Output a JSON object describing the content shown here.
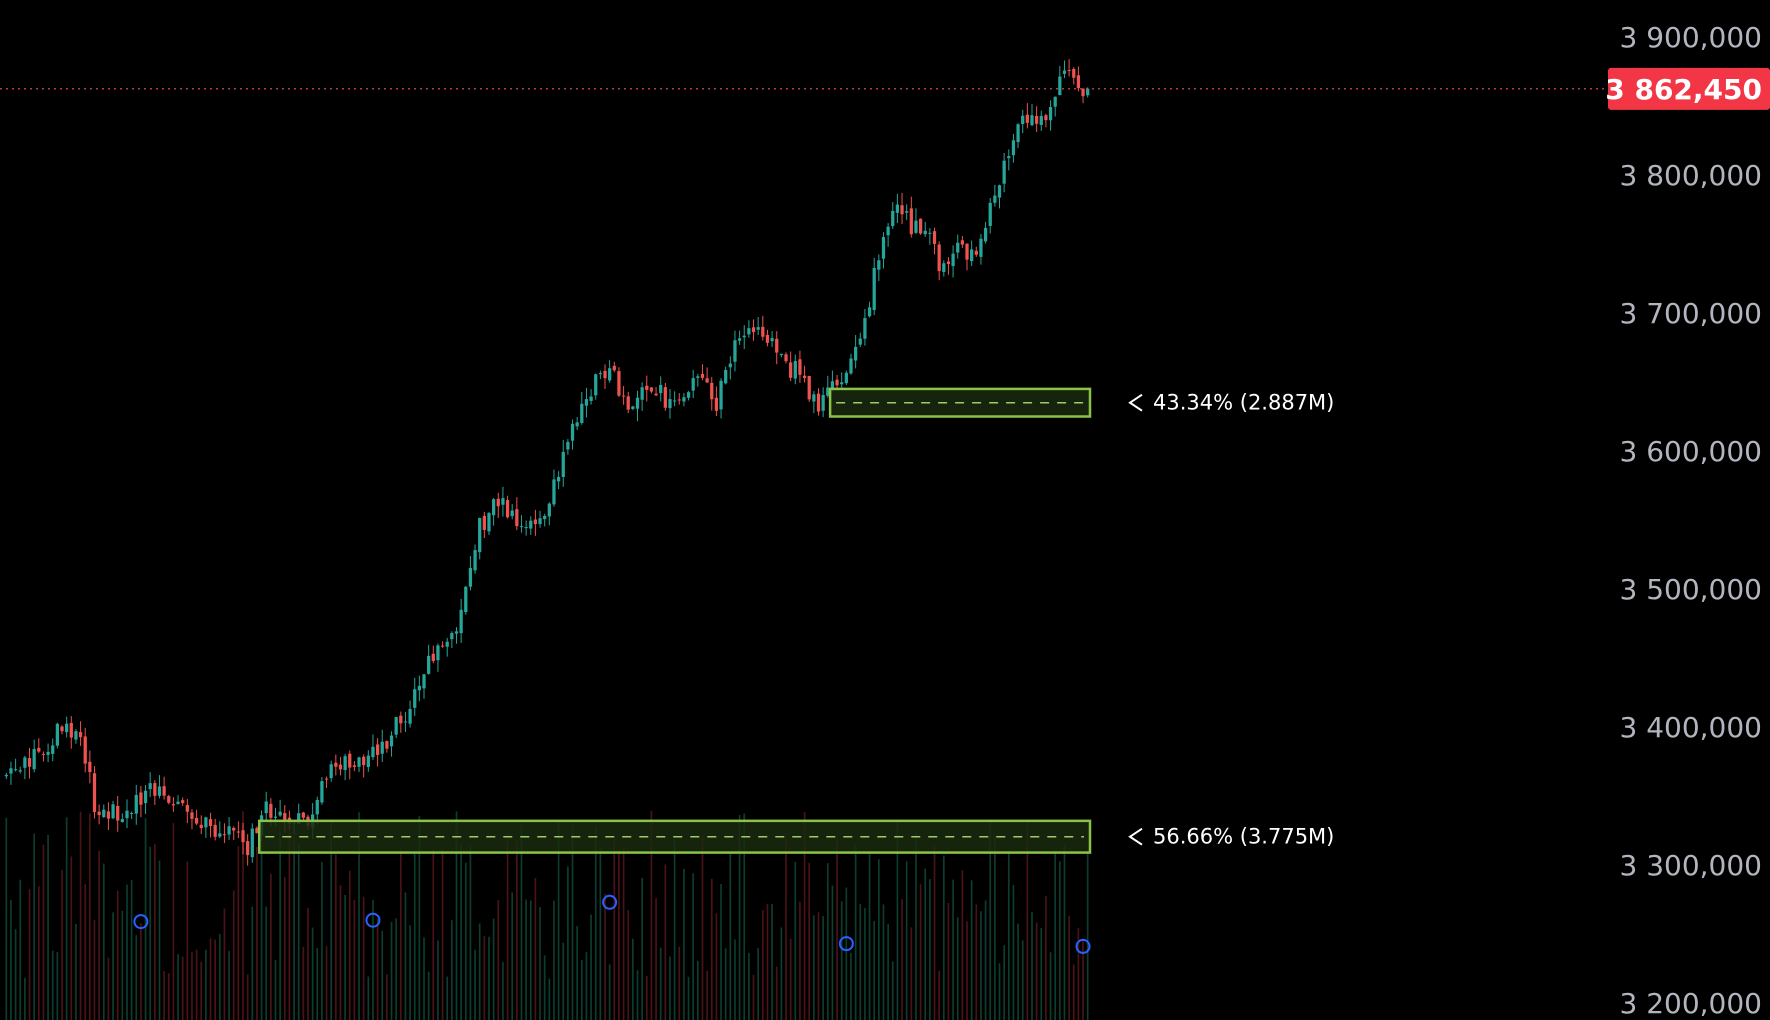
{
  "chart_data": {
    "type": "candlestick",
    "ylim": [
      3190000,
      3920000
    ],
    "yticks": [
      3900000,
      3800000,
      3700000,
      3600000,
      3500000,
      3400000,
      3300000,
      3200000
    ],
    "ytick_labels": [
      "3 900,000",
      "3 800,000",
      "3 700,000",
      "3 600,000",
      "3 500,000",
      "3 400,000",
      "3 300,000",
      "3 200,000"
    ],
    "current_price": 3862450,
    "current_price_label": "3 862,450",
    "bar_count": 200,
    "price_path": [
      [
        0,
        3365000
      ],
      [
        8,
        3385000
      ],
      [
        12,
        3400000
      ],
      [
        16,
        3395000
      ],
      [
        19,
        3345000
      ],
      [
        25,
        3338000
      ],
      [
        32,
        3358000
      ],
      [
        38,
        3345000
      ],
      [
        42,
        3330000
      ],
      [
        47,
        3325000
      ],
      [
        50,
        3320000
      ],
      [
        52,
        3313000
      ],
      [
        56,
        3340000
      ],
      [
        62,
        3330000
      ],
      [
        66,
        3330000
      ],
      [
        68,
        3362000
      ],
      [
        75,
        3378000
      ],
      [
        80,
        3380000
      ],
      [
        85,
        3405000
      ],
      [
        90,
        3440000
      ],
      [
        97,
        3473000
      ],
      [
        102,
        3545000
      ],
      [
        106,
        3565000
      ],
      [
        110,
        3545000
      ],
      [
        115,
        3550000
      ],
      [
        120,
        3595000
      ],
      [
        125,
        3640000
      ],
      [
        130,
        3665000
      ],
      [
        134,
        3625000
      ],
      [
        139,
        3648000
      ],
      [
        144,
        3630000
      ],
      [
        149,
        3650000
      ],
      [
        153,
        3635000
      ],
      [
        157,
        3678000
      ],
      [
        161,
        3693000
      ],
      [
        166,
        3670000
      ],
      [
        171,
        3655000
      ],
      [
        174,
        3635000
      ],
      [
        176,
        3638000
      ],
      [
        180,
        3655000
      ],
      [
        185,
        3695000
      ],
      [
        188,
        3740000
      ],
      [
        192,
        3780000
      ],
      [
        196,
        3760000
      ],
      [
        199,
        3755000
      ],
      [
        201,
        3730000
      ],
      [
        205,
        3745000
      ],
      [
        210,
        3748000
      ],
      [
        213,
        3790000
      ],
      [
        217,
        3830000
      ],
      [
        221,
        3850000
      ],
      [
        223,
        3840000
      ],
      [
        226,
        3862000
      ],
      [
        228,
        3880000
      ],
      [
        230,
        3868000
      ],
      [
        233,
        3862450
      ]
    ],
    "supply_zones": [
      {
        "label": "43.34% (2.887M)",
        "top": 3645000,
        "bottom": 3625000,
        "start": 178,
        "end": 233
      },
      {
        "label": "56.66% (3.775M)",
        "top": 3332000,
        "bottom": 3309000,
        "start": 55,
        "end": 233
      }
    ],
    "markers": [
      {
        "bar": 29,
        "level": 3259000
      },
      {
        "bar": 79,
        "level": 3260000
      },
      {
        "bar": 130,
        "level": 3273000
      },
      {
        "bar": 181,
        "level": 3243000
      },
      {
        "bar": 232,
        "level": 3241000
      }
    ],
    "colors": {
      "background": "#000000",
      "up": "#26a69a",
      "down": "#ef5350",
      "zone_border": "#8bc34a",
      "zone_fill": "#1b2a0f",
      "zone_dash": "#9ccc65",
      "marker": "#2962ff",
      "price_line": "#ef5350",
      "price_tag": "#f23645",
      "axis_text": "#b2b5be"
    }
  }
}
